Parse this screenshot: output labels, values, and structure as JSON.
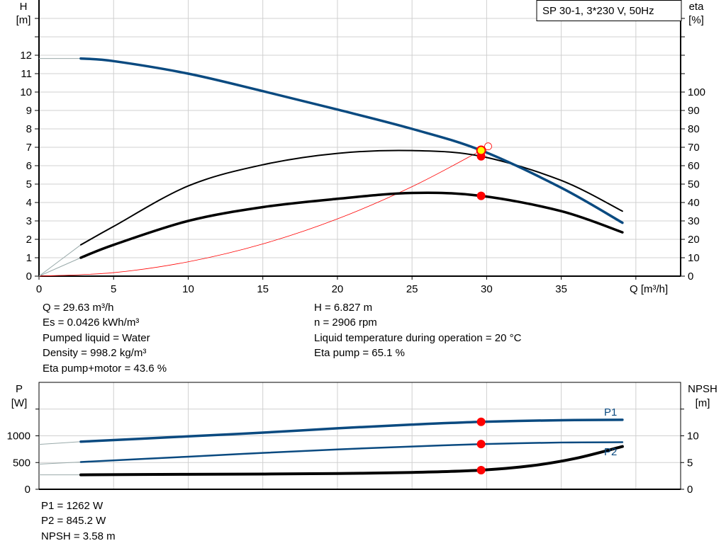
{
  "legend_box": {
    "label": "SP 30-1, 3*230 V, 50Hz"
  },
  "colors": {
    "head": "#0a4a80",
    "power": "#0a4a80",
    "efficiency": "#000000",
    "npsh": "#000000",
    "system_curve": "#ff0000",
    "duty_point": "#ff0000",
    "operating_point": "#ffff00"
  },
  "info_top": {
    "left": [
      "Q = 29.63 m³/h",
      "Es = 0.0426 kWh/m³",
      "Pumped liquid = Water",
      "Density = 998.2 kg/m³",
      "Eta pump+motor = 43.6 %"
    ],
    "right": [
      "H = 6.827 m",
      "n = 2906 rpm",
      "Liquid temperature during operation = 20 °C",
      "Eta pump = 65.1 %"
    ]
  },
  "info_bottom": [
    "P1 = 1262 W",
    "P2 = 845.2 W",
    "NPSH = 3.58 m"
  ],
  "chart_data": [
    {
      "type": "line",
      "xlabel": "Q [m³/h]",
      "ylabel_left": [
        "H",
        "[m]"
      ],
      "ylabel_right": [
        "eta",
        "[%]"
      ],
      "xlim": [
        0,
        43
      ],
      "ylim_left": [
        0,
        15
      ],
      "ylim_right": [
        0,
        150
      ],
      "xticks": [
        0,
        5,
        10,
        15,
        20,
        25,
        30,
        35
      ],
      "yticks_left": [
        0,
        1,
        2,
        3,
        4,
        5,
        6,
        7,
        8,
        9,
        10,
        11,
        12
      ],
      "yticks_right": [
        0,
        10,
        20,
        30,
        40,
        50,
        60,
        70,
        80,
        90,
        100
      ],
      "grid": true,
      "series": [
        {
          "id": "head",
          "axis": "left",
          "x": [
            0,
            2.8,
            5,
            10,
            15,
            20,
            25,
            29.63,
            35,
            39.1
          ],
          "y": [
            11.82,
            11.82,
            11.68,
            11.0,
            10.05,
            9.05,
            8.0,
            6.83,
            4.8,
            2.9
          ]
        },
        {
          "id": "eta_pump",
          "axis": "right",
          "x": [
            0,
            2.8,
            5,
            10,
            15,
            20,
            25,
            29.63,
            35,
            39.1
          ],
          "y": [
            0,
            17,
            27,
            49,
            60.5,
            66.7,
            68.2,
            65.1,
            52,
            35.3
          ]
        },
        {
          "id": "eta_pump_motor",
          "axis": "right",
          "x": [
            0,
            2.8,
            5,
            10,
            15,
            20,
            25,
            29.63,
            35,
            39.1
          ],
          "y": [
            0,
            10,
            17,
            30,
            37.5,
            42,
            45.2,
            43.6,
            35.3,
            23.8
          ]
        },
        {
          "id": "system_curve",
          "axis": "left",
          "x": [
            0,
            5,
            10,
            15,
            20,
            25,
            29.63,
            30.1
          ],
          "y": [
            0,
            0.19,
            0.78,
            1.75,
            3.11,
            4.86,
            6.83,
            7.05
          ]
        }
      ],
      "markers": [
        {
          "id": "operating_point",
          "x": 29.63,
          "y": 6.827,
          "axis": "left"
        },
        {
          "id": "eta_pump_point",
          "x": 29.63,
          "y": 65.1,
          "axis": "right"
        },
        {
          "id": "eta_pump_motor_point",
          "x": 29.63,
          "y": 43.6,
          "axis": "right"
        }
      ]
    },
    {
      "type": "line",
      "ylabel_left": [
        "P",
        "[W]"
      ],
      "ylabel_right": [
        "NPSH",
        "[m]"
      ],
      "xlim": [
        0,
        43
      ],
      "ylim_left": [
        0,
        2000
      ],
      "ylim_right": [
        0,
        20
      ],
      "yticks_left": [
        0,
        500,
        1000
      ],
      "yticks_right": [
        0,
        5,
        10
      ],
      "grid": true,
      "series": [
        {
          "id": "P1",
          "name": "P1",
          "axis": "left",
          "x": [
            0,
            2.8,
            10,
            15,
            20,
            25,
            29.63,
            35,
            39.1
          ],
          "y": [
            840,
            890,
            990,
            1060,
            1140,
            1210,
            1262,
            1292,
            1300
          ]
        },
        {
          "id": "P2",
          "name": "P2",
          "axis": "left",
          "x": [
            0,
            2.8,
            10,
            15,
            20,
            25,
            29.63,
            35,
            39.1
          ],
          "y": [
            470,
            510,
            610,
            680,
            745,
            800,
            845,
            875,
            880
          ]
        },
        {
          "id": "NPSH",
          "axis": "right",
          "x": [
            0,
            2.8,
            10,
            15,
            20,
            25,
            29.63,
            33,
            36,
            39.1
          ],
          "y": [
            2.7,
            2.7,
            2.8,
            2.85,
            2.95,
            3.15,
            3.58,
            4.4,
            5.8,
            8.0
          ]
        }
      ],
      "markers": [
        {
          "id": "P1_point",
          "x": 29.63,
          "y": 1262,
          "axis": "left"
        },
        {
          "id": "P2_point",
          "x": 29.63,
          "y": 845.2,
          "axis": "left"
        },
        {
          "id": "NPSH_point",
          "x": 29.63,
          "y": 3.58,
          "axis": "right"
        }
      ]
    }
  ]
}
